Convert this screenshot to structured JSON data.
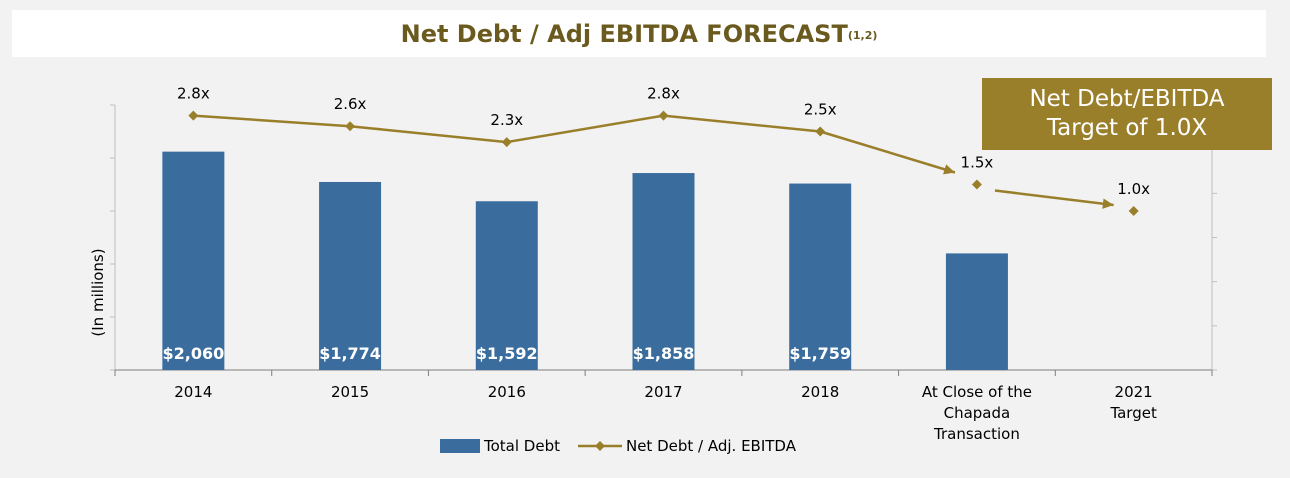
{
  "header": {
    "title": "Net Debt / Adj EBITDA FORECAST",
    "superscript": "(1,2)"
  },
  "callout": {
    "line1": "Net Debt/EBITDA",
    "line2": "Target of 1.0X"
  },
  "colors": {
    "bar": "#3a6d9e",
    "line": "#9a7f2b",
    "title": "#6b5a1e",
    "callout_bg": "#9a7f2b"
  },
  "legend": {
    "bar_label": "Total Debt",
    "line_label": "Net Debt / Adj. EBITDA"
  },
  "chart_data": {
    "type": "bar",
    "ylabel": "(In millions)",
    "categories": [
      [
        "2014"
      ],
      [
        "2015"
      ],
      [
        "2016"
      ],
      [
        "2017"
      ],
      [
        "2018"
      ],
      [
        "At Close of the",
        "Chapada",
        "Transaction"
      ],
      [
        "2021",
        "Target"
      ]
    ],
    "series": [
      {
        "name": "Total Debt",
        "kind": "bar",
        "values": [
          2060,
          1774,
          1592,
          1858,
          1759,
          1100,
          null
        ],
        "labels": [
          "$2,060",
          "$1,774",
          "$1,592",
          "$1,858",
          "$1,759",
          "",
          ""
        ]
      },
      {
        "name": "Net Debt / Adj. EBITDA",
        "kind": "line",
        "values": [
          2.8,
          2.6,
          2.3,
          2.8,
          2.5,
          1.5,
          1.0
        ],
        "labels": [
          "2.8x",
          "2.6x",
          "2.3x",
          "2.8x",
          "2.5x",
          "1.5x",
          "1.0x"
        ]
      }
    ],
    "ylim_bar": [
      0,
      2500
    ],
    "ylim_line": [
      -2.0,
      3.0
    ],
    "legend_position": "bottom"
  }
}
